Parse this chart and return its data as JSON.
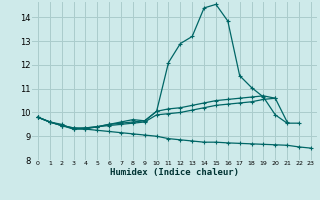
{
  "xlabel": "Humidex (Indice chaleur)",
  "background_color": "#ceeaea",
  "grid_color": "#aacccc",
  "line_color": "#006666",
  "xlim": [
    -0.5,
    23.5
  ],
  "ylim": [
    8.0,
    14.65
  ],
  "yticks": [
    8,
    9,
    10,
    11,
    12,
    13,
    14
  ],
  "xticks": [
    0,
    1,
    2,
    3,
    4,
    5,
    6,
    7,
    8,
    9,
    10,
    11,
    12,
    13,
    14,
    15,
    16,
    17,
    18,
    19,
    20,
    21,
    22,
    23
  ],
  "lines": [
    {
      "x": [
        0,
        1,
        2,
        3,
        4,
        5,
        6,
        7,
        8,
        9,
        10,
        11,
        12,
        13,
        14,
        15,
        16,
        17,
        18,
        19,
        20,
        21,
        22
      ],
      "y": [
        9.8,
        9.6,
        9.5,
        9.3,
        9.3,
        9.4,
        9.5,
        9.6,
        9.7,
        9.65,
        10.05,
        12.1,
        12.9,
        13.2,
        14.4,
        14.55,
        13.85,
        11.55,
        11.05,
        10.65,
        9.9,
        9.55,
        9.55
      ]
    },
    {
      "x": [
        0,
        1,
        2,
        3,
        4,
        5,
        6,
        7,
        8,
        9,
        10,
        11,
        12,
        13,
        14,
        15,
        16,
        17,
        18,
        19,
        20,
        21
      ],
      "y": [
        9.8,
        9.6,
        9.45,
        9.3,
        9.35,
        9.4,
        9.5,
        9.55,
        9.6,
        9.65,
        10.05,
        10.15,
        10.2,
        10.3,
        10.4,
        10.5,
        10.55,
        10.6,
        10.65,
        10.7,
        10.6,
        9.6
      ]
    },
    {
      "x": [
        0,
        1,
        2,
        3,
        4,
        5,
        6,
        7,
        8,
        9,
        10,
        11,
        12,
        13,
        14,
        15,
        16,
        17,
        18,
        19,
        20
      ],
      "y": [
        9.8,
        9.6,
        9.45,
        9.35,
        9.35,
        9.4,
        9.45,
        9.5,
        9.55,
        9.6,
        9.9,
        9.95,
        10.0,
        10.1,
        10.2,
        10.3,
        10.35,
        10.4,
        10.45,
        10.55,
        10.6
      ]
    },
    {
      "x": [
        0,
        1,
        2,
        3,
        4,
        5,
        6,
        7,
        8,
        9,
        10,
        11,
        12,
        13,
        14,
        15,
        16,
        17,
        18,
        19,
        20,
        21,
        22,
        23
      ],
      "y": [
        9.8,
        9.6,
        9.45,
        9.35,
        9.3,
        9.25,
        9.2,
        9.15,
        9.1,
        9.05,
        9.0,
        8.9,
        8.85,
        8.8,
        8.75,
        8.75,
        8.72,
        8.7,
        8.68,
        8.66,
        8.64,
        8.62,
        8.55,
        8.5
      ]
    }
  ]
}
